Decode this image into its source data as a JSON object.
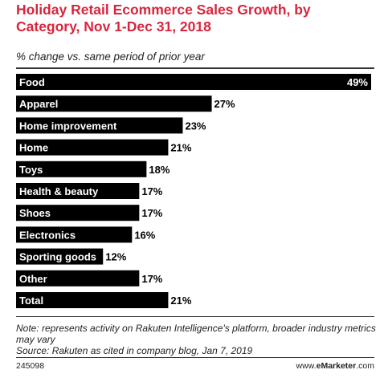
{
  "chart_data": {
    "type": "bar",
    "orientation": "horizontal",
    "title": "Holiday Retail Ecommerce Sales Growth, by Category, Nov 1-Dec 31, 2018",
    "subtitle": "% change vs. same period of prior year",
    "categories": [
      "Food",
      "Apparel",
      "Home improvement",
      "Home",
      "Toys",
      "Health & beauty",
      "Shoes",
      "Electronics",
      "Sporting goods",
      "Other",
      "Total"
    ],
    "values": [
      49,
      27,
      23,
      21,
      18,
      17,
      17,
      16,
      12,
      17,
      21
    ],
    "value_labels": [
      "49%",
      "27%",
      "23%",
      "21%",
      "18%",
      "17%",
      "17%",
      "16%",
      "12%",
      "17%",
      "21%"
    ],
    "xlim": [
      0,
      49
    ],
    "grid": false,
    "bar_color": "#000000"
  },
  "note": "Note: represents activity on Rakuten Intelligence's platform, broader industry metrics may vary",
  "source": "Source: Rakuten as cited in company blog, Jan 7, 2019",
  "footer": {
    "chart_id": "245098",
    "brand_prefix": "www.",
    "brand_bold": "eMarketer",
    "brand_suffix": ".com"
  },
  "colors": {
    "title": "#d7263d",
    "bar": "#000000",
    "bar_label": "#ffffff"
  }
}
